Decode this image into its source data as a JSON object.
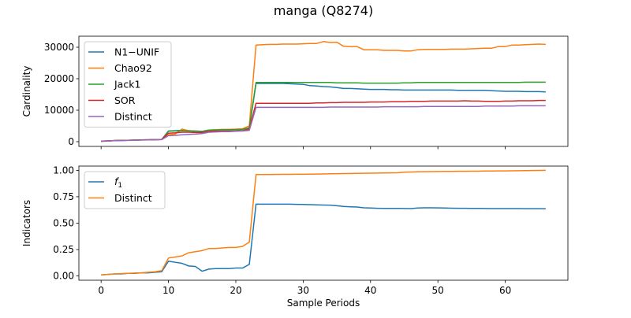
{
  "figure": {
    "title": "manga (Q8274)"
  },
  "chart_data": [
    {
      "type": "line",
      "ylabel": "Cardinality",
      "xlabel": "",
      "xlim": [
        -3.3,
        69.3
      ],
      "ylim": [
        -1500,
        33500
      ],
      "xticks": [
        0,
        10,
        20,
        30,
        40,
        50,
        60
      ],
      "yticks": [
        0,
        10000,
        20000,
        30000
      ],
      "ytick_labels": [
        "0",
        "10000",
        "20000",
        "30000"
      ],
      "show_xtick_labels": false,
      "grid": false,
      "legend": "top-left",
      "x": [
        0,
        1,
        2,
        3,
        4,
        5,
        6,
        7,
        8,
        9,
        10,
        11,
        12,
        13,
        14,
        15,
        16,
        17,
        18,
        19,
        20,
        21,
        22,
        23,
        24,
        25,
        26,
        27,
        28,
        29,
        30,
        31,
        32,
        33,
        34,
        35,
        36,
        37,
        38,
        39,
        40,
        41,
        42,
        43,
        44,
        45,
        46,
        47,
        48,
        49,
        50,
        51,
        52,
        53,
        54,
        55,
        56,
        57,
        58,
        59,
        60,
        61,
        62,
        63,
        64,
        65,
        66
      ],
      "series": [
        {
          "name": "N1−UNIF",
          "color": "#1f77b4",
          "values": [
            150,
            250,
            350,
            400,
            450,
            500,
            550,
            600,
            650,
            700,
            3400,
            3500,
            3600,
            3500,
            3400,
            3300,
            3700,
            3700,
            3800,
            3800,
            3800,
            3900,
            4300,
            18500,
            18500,
            18500,
            18500,
            18500,
            18400,
            18300,
            18200,
            17800,
            17700,
            17500,
            17400,
            17200,
            16900,
            16900,
            16800,
            16700,
            16600,
            16600,
            16600,
            16500,
            16500,
            16400,
            16400,
            16400,
            16400,
            16400,
            16400,
            16400,
            16400,
            16300,
            16300,
            16300,
            16300,
            16300,
            16200,
            16100,
            16000,
            16000,
            16000,
            15900,
            15900,
            15900,
            15800
          ]
        },
        {
          "name": "Chao92",
          "color": "#ff7f0e",
          "values": [
            150,
            250,
            350,
            400,
            450,
            500,
            550,
            600,
            650,
            700,
            2200,
            2400,
            4000,
            3500,
            3300,
            3200,
            3700,
            3800,
            3900,
            3900,
            4000,
            4100,
            5000,
            30700,
            30800,
            30900,
            30900,
            31000,
            31000,
            31000,
            31100,
            31200,
            31200,
            31800,
            31500,
            31600,
            30300,
            30200,
            30200,
            29200,
            29200,
            29200,
            29000,
            29000,
            29000,
            28800,
            28800,
            29200,
            29300,
            29300,
            29300,
            29300,
            29400,
            29400,
            29400,
            29500,
            29600,
            29700,
            29700,
            30200,
            30200,
            30700,
            30700,
            30800,
            30900,
            31000,
            30900
          ]
        },
        {
          "name": "Jack1",
          "color": "#2ca02c",
          "values": [
            150,
            250,
            350,
            400,
            450,
            500,
            550,
            600,
            650,
            700,
            3300,
            3400,
            3500,
            3400,
            3300,
            3200,
            3700,
            3700,
            3800,
            3800,
            3800,
            3900,
            4400,
            18800,
            18800,
            18800,
            18800,
            18800,
            18800,
            18800,
            18800,
            18800,
            18800,
            18800,
            18800,
            18700,
            18700,
            18700,
            18700,
            18600,
            18600,
            18600,
            18600,
            18600,
            18600,
            18700,
            18700,
            18800,
            18800,
            18800,
            18800,
            18800,
            18800,
            18800,
            18800,
            18800,
            18800,
            18800,
            18800,
            18800,
            18800,
            18800,
            18800,
            18900,
            18900,
            18900,
            18900
          ]
        },
        {
          "name": "SOR",
          "color": "#d62728",
          "values": [
            150,
            250,
            350,
            400,
            450,
            500,
            550,
            600,
            650,
            700,
            2700,
            2800,
            3000,
            3000,
            2900,
            2900,
            3300,
            3300,
            3400,
            3400,
            3400,
            3500,
            4000,
            12200,
            12200,
            12200,
            12200,
            12200,
            12200,
            12200,
            12200,
            12200,
            12300,
            12300,
            12400,
            12400,
            12500,
            12500,
            12500,
            12500,
            12600,
            12600,
            12600,
            12700,
            12700,
            12700,
            12800,
            12800,
            12800,
            12900,
            12900,
            12900,
            12900,
            12900,
            13000,
            12900,
            12900,
            12800,
            12800,
            12800,
            12900,
            12900,
            13000,
            13000,
            13000,
            13100,
            13100
          ]
        },
        {
          "name": "Distinct",
          "color": "#9467bd",
          "values": [
            100,
            200,
            300,
            350,
            400,
            450,
            500,
            550,
            600,
            650,
            1900,
            2000,
            2200,
            2300,
            2400,
            2600,
            3000,
            3100,
            3200,
            3200,
            3300,
            3400,
            3600,
            10900,
            10900,
            10900,
            10900,
            10900,
            10900,
            10900,
            10900,
            10900,
            10900,
            10900,
            11000,
            11000,
            11000,
            11000,
            11000,
            11000,
            11000,
            11000,
            11100,
            11100,
            11100,
            11100,
            11100,
            11100,
            11200,
            11200,
            11200,
            11200,
            11200,
            11200,
            11200,
            11200,
            11200,
            11300,
            11300,
            11300,
            11300,
            11300,
            11400,
            11400,
            11400,
            11400,
            11400
          ]
        }
      ]
    },
    {
      "type": "line",
      "ylabel": "Indicators",
      "xlabel": "Sample Periods",
      "xlim": [
        -3.3,
        69.3
      ],
      "ylim": [
        -0.04,
        1.04
      ],
      "xticks": [
        0,
        10,
        20,
        30,
        40,
        50,
        60
      ],
      "xtick_labels": [
        "0",
        "10",
        "20",
        "30",
        "40",
        "50",
        "60"
      ],
      "yticks": [
        0,
        0.25,
        0.5,
        0.75,
        1.0
      ],
      "ytick_labels": [
        "0.00",
        "0.25",
        "0.50",
        "0.75",
        "1.00"
      ],
      "show_xtick_labels": true,
      "grid": false,
      "legend": "top-left",
      "x": [
        0,
        1,
        2,
        3,
        4,
        5,
        6,
        7,
        8,
        9,
        10,
        11,
        12,
        13,
        14,
        15,
        16,
        17,
        18,
        19,
        20,
        21,
        22,
        23,
        24,
        25,
        26,
        27,
        28,
        29,
        30,
        31,
        32,
        33,
        34,
        35,
        36,
        37,
        38,
        39,
        40,
        41,
        42,
        43,
        44,
        45,
        46,
        47,
        48,
        49,
        50,
        51,
        52,
        53,
        54,
        55,
        56,
        57,
        58,
        59,
        60,
        61,
        62,
        63,
        64,
        65,
        66
      ],
      "series": [
        {
          "name": "f₁",
          "legend_main": "f",
          "legend_sub": "1",
          "color": "#1f77b4",
          "values": [
            0.01,
            0.015,
            0.02,
            0.02,
            0.025,
            0.025,
            0.03,
            0.03,
            0.035,
            0.04,
            0.14,
            0.13,
            0.12,
            0.095,
            0.09,
            0.045,
            0.065,
            0.07,
            0.07,
            0.07,
            0.075,
            0.075,
            0.11,
            0.68,
            0.68,
            0.68,
            0.68,
            0.68,
            0.68,
            0.678,
            0.677,
            0.675,
            0.673,
            0.671,
            0.67,
            0.665,
            0.658,
            0.655,
            0.653,
            0.645,
            0.643,
            0.641,
            0.64,
            0.64,
            0.64,
            0.639,
            0.638,
            0.643,
            0.645,
            0.645,
            0.644,
            0.643,
            0.642,
            0.641,
            0.641,
            0.64,
            0.64,
            0.639,
            0.638,
            0.638,
            0.638,
            0.638,
            0.638,
            0.637,
            0.637,
            0.637,
            0.636
          ]
        },
        {
          "name": "Distinct",
          "color": "#ff7f0e",
          "values": [
            0.01,
            0.015,
            0.02,
            0.022,
            0.025,
            0.028,
            0.03,
            0.035,
            0.04,
            0.05,
            0.17,
            0.18,
            0.19,
            0.22,
            0.23,
            0.24,
            0.26,
            0.26,
            0.265,
            0.27,
            0.27,
            0.28,
            0.32,
            0.96,
            0.96,
            0.96,
            0.961,
            0.962,
            0.962,
            0.963,
            0.963,
            0.964,
            0.965,
            0.966,
            0.967,
            0.968,
            0.969,
            0.97,
            0.971,
            0.972,
            0.973,
            0.974,
            0.975,
            0.976,
            0.977,
            0.982,
            0.984,
            0.986,
            0.987,
            0.988,
            0.989,
            0.99,
            0.99,
            0.991,
            0.991,
            0.992,
            0.992,
            0.993,
            0.993,
            0.994,
            0.994,
            0.995,
            0.996,
            0.997,
            0.998,
            0.999,
            1.0
          ]
        }
      ]
    }
  ]
}
